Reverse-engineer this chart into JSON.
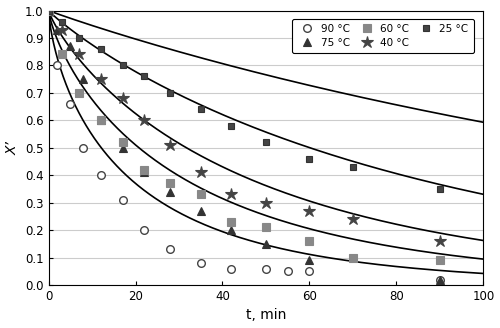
{
  "xlabel": "t, min",
  "ylabel": "X’",
  "xlim": [
    0,
    100
  ],
  "ylim": [
    0.0,
    1.0
  ],
  "xticks": [
    0,
    20,
    40,
    60,
    80,
    100
  ],
  "yticks": [
    0.0,
    0.1,
    0.2,
    0.3,
    0.4,
    0.5,
    0.6,
    0.7,
    0.8,
    0.9,
    1.0
  ],
  "series": [
    {
      "label": "90 °C",
      "marker": "o",
      "markersize": 5.5,
      "markerfacecolor": "white",
      "markeredgecolor": "#444444",
      "markeredgewidth": 1.0,
      "exp_x": [
        0,
        2,
        5,
        8,
        12,
        17,
        22,
        28,
        35,
        42,
        50,
        55,
        60,
        90
      ],
      "exp_y": [
        1.0,
        0.8,
        0.66,
        0.5,
        0.4,
        0.31,
        0.2,
        0.13,
        0.08,
        0.06,
        0.06,
        0.05,
        0.05,
        0.02
      ],
      "k": 0.115,
      "n": 0.72
    },
    {
      "label": "75 °C",
      "marker": "^",
      "markersize": 6,
      "markerfacecolor": "#333333",
      "markeredgecolor": "#333333",
      "markeredgewidth": 0.8,
      "exp_x": [
        0,
        2,
        5,
        8,
        12,
        17,
        22,
        28,
        35,
        42,
        50,
        60,
        90
      ],
      "exp_y": [
        1.0,
        0.93,
        0.87,
        0.75,
        0.6,
        0.5,
        0.41,
        0.34,
        0.27,
        0.2,
        0.15,
        0.09,
        0.02
      ],
      "k": 0.065,
      "n": 0.78
    },
    {
      "label": "60 °C",
      "marker": "s",
      "markersize": 6,
      "markerfacecolor": "#888888",
      "markeredgecolor": "#888888",
      "markeredgewidth": 0.8,
      "exp_x": [
        0,
        3,
        7,
        12,
        17,
        22,
        28,
        35,
        42,
        50,
        60,
        70,
        90
      ],
      "exp_y": [
        1.0,
        0.84,
        0.7,
        0.6,
        0.52,
        0.42,
        0.37,
        0.33,
        0.23,
        0.21,
        0.16,
        0.1,
        0.09
      ],
      "k": 0.038,
      "n": 0.84
    },
    {
      "label": "40 °C",
      "marker": "*",
      "markersize": 9,
      "markerfacecolor": "#444444",
      "markeredgecolor": "#444444",
      "markeredgewidth": 0.8,
      "exp_x": [
        0,
        3,
        7,
        12,
        17,
        22,
        28,
        35,
        42,
        50,
        60,
        70,
        90
      ],
      "exp_y": [
        1.0,
        0.93,
        0.84,
        0.75,
        0.68,
        0.6,
        0.51,
        0.41,
        0.33,
        0.3,
        0.27,
        0.24,
        0.16
      ],
      "k": 0.016,
      "n": 0.92
    },
    {
      "label": "25 °C",
      "marker": "s",
      "markersize": 5,
      "markerfacecolor": "#444444",
      "markeredgecolor": "#333333",
      "markeredgewidth": 0.8,
      "exp_x": [
        0,
        3,
        7,
        12,
        17,
        22,
        28,
        35,
        42,
        50,
        60,
        70,
        90
      ],
      "exp_y": [
        1.0,
        0.96,
        0.9,
        0.86,
        0.8,
        0.76,
        0.7,
        0.64,
        0.58,
        0.52,
        0.46,
        0.43,
        0.35
      ],
      "k": 0.006,
      "n": 0.97
    }
  ],
  "figure_facecolor": "white",
  "axes_facecolor": "white",
  "grid_color": "#cccccc",
  "line_color": "black",
  "line_width": 1.2
}
